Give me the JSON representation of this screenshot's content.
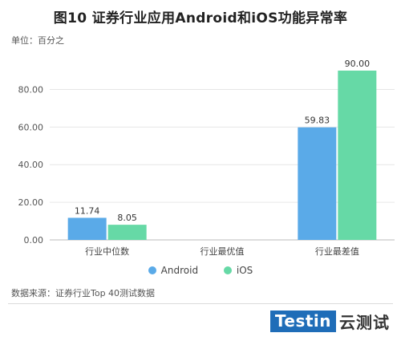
{
  "header": {
    "title": "图10 证券行业应用Android和iOS功能异常率",
    "unit_label": "单位：百分之"
  },
  "chart_data": {
    "type": "bar",
    "categories": [
      "行业中位数",
      "行业最优值",
      "行业最差值"
    ],
    "series": [
      {
        "name": "Android",
        "values": [
          11.74,
          null,
          59.83
        ],
        "labels": [
          "11.74",
          "",
          "59.83"
        ],
        "color": "#5aaae8"
      },
      {
        "name": "iOS",
        "values": [
          8.05,
          null,
          90.0
        ],
        "labels": [
          "8.05",
          "",
          "90.00"
        ],
        "color": "#66d9a6"
      }
    ],
    "ylim": [
      0,
      90
    ],
    "yticks": [
      "0.00",
      "20.00",
      "40.00",
      "60.00",
      "80.00"
    ],
    "grid": true,
    "legend_position": "bottom"
  },
  "footer": {
    "source": "数据来源：证券行业Top 40测试数据",
    "brand_box": "Testin",
    "brand_text": "云测试"
  }
}
